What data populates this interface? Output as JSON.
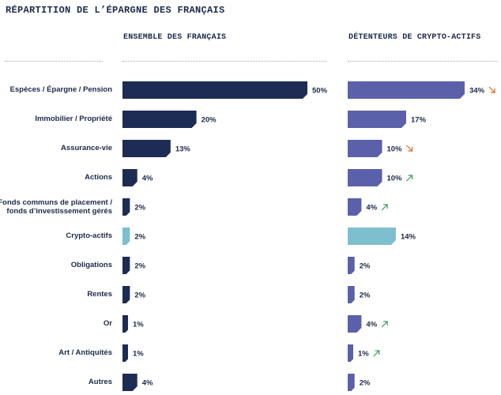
{
  "title": "RÉPARTITION DE L’ÉPARGNE DES FRANÇAIS",
  "colors": {
    "navy": "#1d2c54",
    "purple": "#5b60aa",
    "highlight": "#7dbfcf",
    "down_arrow": "#d2691e",
    "up_arrow": "#3a9a5b"
  },
  "chart_data": [
    {
      "type": "bar",
      "orientation": "horizontal",
      "title": "ENSEMBLE DES FRANÇAIS",
      "categories": [
        "Espèces / Épargne / Pension",
        "Immobilier / Propriété",
        "Assurance-vie",
        "Actions",
        "Fonds communs de placement / fonds d’investissement gérés",
        "Crypto-actifs",
        "Obligations",
        "Rentes",
        "Or",
        "Art / Antiquités",
        "Autres"
      ],
      "values": [
        50,
        20,
        13,
        4,
        2,
        2,
        2,
        2,
        1,
        1,
        4
      ],
      "labels": [
        "50%",
        "20%",
        "13%",
        "4%",
        "2%",
        "2%",
        "2%",
        "2%",
        "1%",
        "1%",
        "4%"
      ],
      "highlight_category": "Crypto-actifs",
      "xlim": [
        0,
        50
      ]
    },
    {
      "type": "bar",
      "orientation": "horizontal",
      "title": "DÉTENTEURS DE CRYPTO-ACTIFS",
      "categories": [
        "Espèces / Épargne / Pension",
        "Immobilier / Propriété",
        "Assurance-vie",
        "Actions",
        "Fonds communs de placement / fonds d’investissement gérés",
        "Crypto-actifs",
        "Obligations",
        "Rentes",
        "Or",
        "Art / Antiquités",
        "Autres"
      ],
      "values": [
        34,
        17,
        10,
        10,
        4,
        14,
        2,
        2,
        4,
        1,
        2
      ],
      "labels": [
        "34%",
        "17%",
        "10%",
        "10%",
        "4%",
        "14%",
        "2%",
        "2%",
        "4%",
        "1%",
        "2%"
      ],
      "trend": [
        "down",
        "",
        "down",
        "up",
        "up",
        "",
        "",
        "",
        "up",
        "up",
        ""
      ],
      "highlight_category": "Crypto-actifs",
      "xlim": [
        0,
        34
      ]
    }
  ]
}
